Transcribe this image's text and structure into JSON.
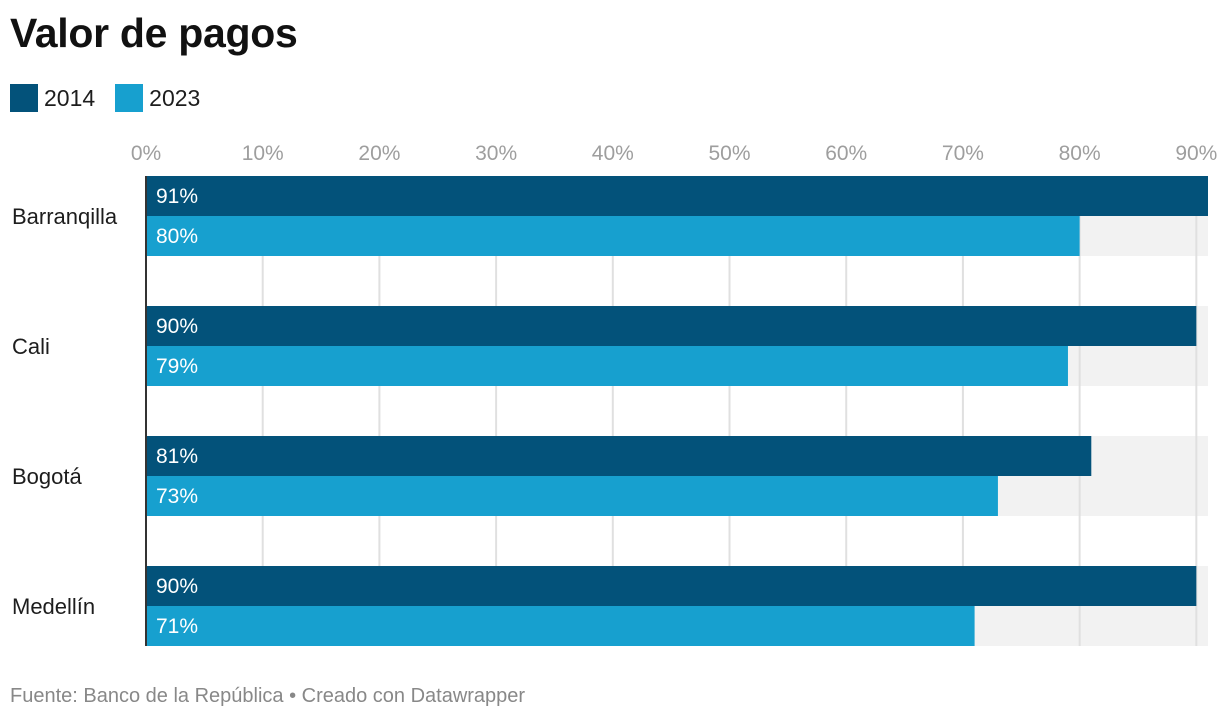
{
  "title": "Valor de pagos",
  "footer": {
    "source": "Fuente: Banco de la República • Creado con Datawrapper"
  },
  "legend": [
    {
      "label": "2014",
      "color": "#03527a"
    },
    {
      "label": "2023",
      "color": "#17a0cf"
    }
  ],
  "chart_data": {
    "type": "bar",
    "orientation": "horizontal",
    "title": "Valor de pagos",
    "categories": [
      "Barranqilla",
      "Cali",
      "Bogotá",
      "Medellín"
    ],
    "series": [
      {
        "name": "2014",
        "color": "#03527a",
        "values": [
          91,
          90,
          81,
          90
        ],
        "labels": [
          "91%",
          "90%",
          "81%",
          "90%"
        ]
      },
      {
        "name": "2023",
        "color": "#17a0cf",
        "values": [
          80,
          79,
          73,
          71
        ],
        "labels": [
          "80%",
          "79%",
          "73%",
          "71%"
        ]
      }
    ],
    "xlim": [
      0,
      91
    ],
    "ticks": [
      0,
      10,
      20,
      30,
      40,
      50,
      60,
      70,
      80,
      90
    ],
    "tick_labels": [
      "0%",
      "10%",
      "20%",
      "30%",
      "40%",
      "50%",
      "60%",
      "70%",
      "80%",
      "90%"
    ],
    "grid": true,
    "legend_position": "top-left",
    "background_band_color": "#f2f2f2",
    "gridline_color": "#e0e0e0",
    "axis_color": "#333333"
  }
}
